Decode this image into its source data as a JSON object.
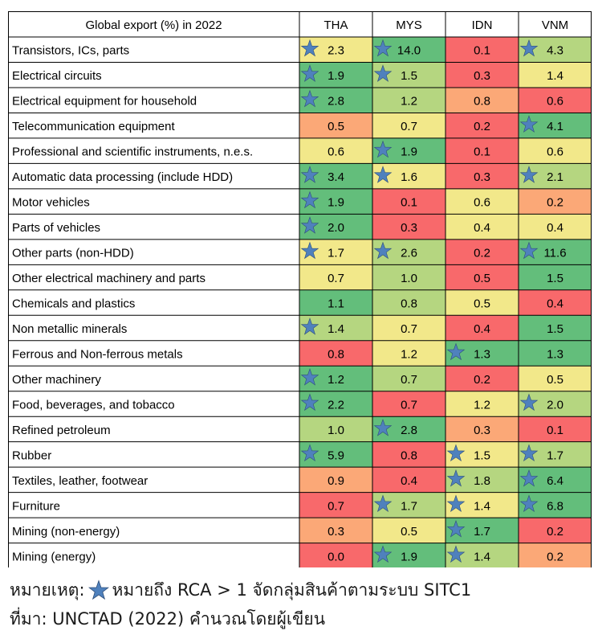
{
  "chart_data": {
    "type": "heatmap",
    "title": "Global export (%) in 2022",
    "columns": [
      "THA",
      "MYS",
      "IDN",
      "VNM"
    ],
    "rows": [
      {
        "label": "Transistors, ICs, parts",
        "values": [
          2.3,
          14.0,
          0.1,
          4.3
        ],
        "star": [
          true,
          true,
          false,
          true
        ]
      },
      {
        "label": "Electrical circuits",
        "values": [
          1.9,
          1.5,
          0.3,
          1.4
        ],
        "star": [
          true,
          true,
          false,
          false
        ]
      },
      {
        "label": "Electrical equipment for household",
        "values": [
          2.8,
          1.2,
          0.8,
          0.6
        ],
        "star": [
          true,
          false,
          false,
          false
        ]
      },
      {
        "label": "Telecommunication equipment",
        "values": [
          0.5,
          0.7,
          0.2,
          4.1
        ],
        "star": [
          false,
          false,
          false,
          true
        ]
      },
      {
        "label": "Professional and scientific instruments, n.e.s.",
        "values": [
          0.6,
          1.9,
          0.1,
          0.6
        ],
        "star": [
          false,
          true,
          false,
          false
        ]
      },
      {
        "label": "Automatic data processing (include HDD)",
        "values": [
          3.4,
          1.6,
          0.3,
          2.1
        ],
        "star": [
          true,
          true,
          false,
          true
        ]
      },
      {
        "label": "Motor vehicles",
        "values": [
          1.9,
          0.1,
          0.6,
          0.2
        ],
        "star": [
          true,
          false,
          false,
          false
        ]
      },
      {
        "label": "Parts of vehicles",
        "values": [
          2.0,
          0.3,
          0.4,
          0.4
        ],
        "star": [
          true,
          false,
          false,
          false
        ]
      },
      {
        "label": "Other parts (non-HDD)",
        "values": [
          1.7,
          2.6,
          0.2,
          11.6
        ],
        "star": [
          true,
          true,
          false,
          true
        ]
      },
      {
        "label": "Other electrical machinery and parts",
        "values": [
          0.7,
          1.0,
          0.5,
          1.5
        ],
        "star": [
          false,
          false,
          false,
          false
        ]
      },
      {
        "label": "Chemicals and plastics",
        "values": [
          1.1,
          0.8,
          0.5,
          0.4
        ],
        "star": [
          false,
          false,
          false,
          false
        ]
      },
      {
        "label": "Non metallic minerals",
        "values": [
          1.4,
          0.7,
          0.4,
          1.5
        ],
        "star": [
          true,
          false,
          false,
          false
        ]
      },
      {
        "label": "Ferrous and Non-ferrous metals",
        "values": [
          0.8,
          1.2,
          1.3,
          1.3
        ],
        "star": [
          false,
          false,
          true,
          false
        ]
      },
      {
        "label": "Other machinery",
        "values": [
          1.2,
          0.7,
          0.2,
          0.5
        ],
        "star": [
          true,
          false,
          false,
          false
        ]
      },
      {
        "label": "Food, beverages, and tobacco",
        "values": [
          2.2,
          0.7,
          1.2,
          2.0
        ],
        "star": [
          true,
          false,
          false,
          true
        ]
      },
      {
        "label": "Refined petroleum",
        "values": [
          1.0,
          2.8,
          0.3,
          0.1
        ],
        "star": [
          false,
          true,
          false,
          false
        ]
      },
      {
        "label": "Rubber",
        "values": [
          5.9,
          0.8,
          1.5,
          1.7
        ],
        "star": [
          true,
          false,
          true,
          true
        ]
      },
      {
        "label": "Textiles, leather, footwear",
        "values": [
          0.9,
          0.4,
          1.8,
          6.4
        ],
        "star": [
          false,
          false,
          true,
          true
        ]
      },
      {
        "label": "Furniture",
        "values": [
          0.7,
          1.7,
          1.4,
          6.8
        ],
        "star": [
          false,
          true,
          true,
          true
        ]
      },
      {
        "label": "Mining (non-energy)",
        "values": [
          0.3,
          0.5,
          1.7,
          0.2
        ],
        "star": [
          false,
          false,
          true,
          false
        ]
      },
      {
        "label": "Mining (energy)",
        "values": [
          0.0,
          1.9,
          1.4,
          0.2
        ],
        "star": [
          false,
          true,
          true,
          false
        ]
      }
    ],
    "colors": {
      "red": "#f8696b",
      "orange": "#fba877",
      "yellow": "#f2e88a",
      "lightgreen": "#b5d680",
      "green": "#63be7b",
      "star": "#4f81bd",
      "grid": "#000000"
    },
    "value_format": "1 decimal"
  },
  "notes": {
    "legend_prefix": "หมายเหตุ:",
    "legend_text": "หมายถึง RCA > 1 จัดกลุ่มสินค้าตามระบบ SITC1",
    "source": "ที่มา: UNCTAD (2022) คำนวณโดยผู้เขียน",
    "star_icon": "blue-star-icon"
  }
}
